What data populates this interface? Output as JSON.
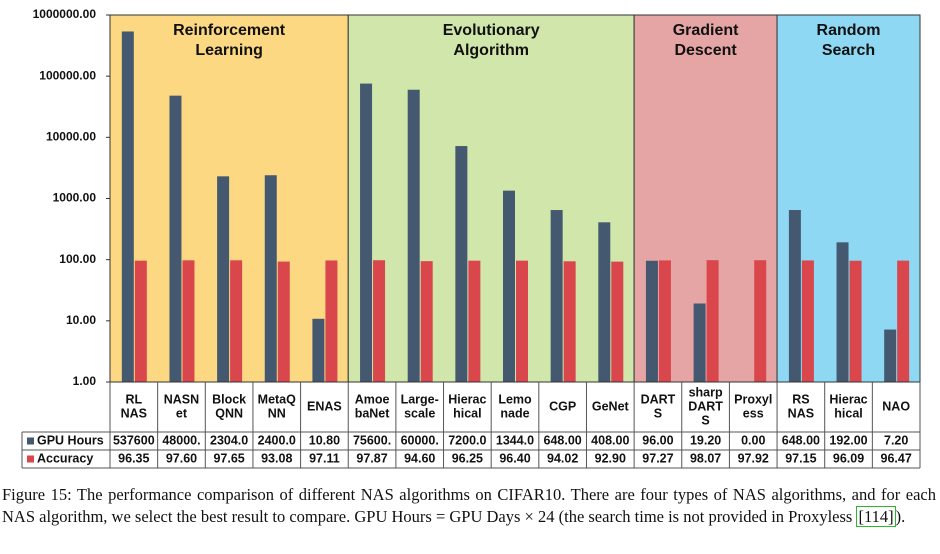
{
  "chart_data": {
    "type": "bar",
    "log_scale": true,
    "categories": [
      [
        "RL",
        "NAS"
      ],
      [
        "NASN",
        "et"
      ],
      [
        "Block",
        "QNN"
      ],
      [
        "MetaQ",
        "NN"
      ],
      [
        "ENAS"
      ],
      [
        "Amoe",
        "baNet"
      ],
      [
        "Large-",
        "scale"
      ],
      [
        "Hierac",
        "hical"
      ],
      [
        "Lemo",
        "nade"
      ],
      [
        "CGP"
      ],
      [
        "GeNet"
      ],
      [
        "DART",
        "S"
      ],
      [
        "sharp",
        "DART",
        "S"
      ],
      [
        "Proxyl",
        "ess"
      ],
      [
        "RS",
        "NAS"
      ],
      [
        "Hierac",
        "hical"
      ],
      [
        "NAO"
      ]
    ],
    "series": [
      {
        "name": "GPU Hours",
        "color": "#44596f",
        "values": [
          537600,
          48000,
          2304,
          2400,
          10.8,
          75600,
          60000,
          7200,
          1344,
          648,
          408,
          96,
          19.2,
          0,
          648,
          192,
          7.2
        ],
        "value_labels": [
          "537600",
          "48000.",
          "2304.0",
          "2400.0",
          "10.80",
          "75600.",
          "60000.",
          "7200.0",
          "1344.0",
          "648.00",
          "408.00",
          "96.00",
          "19.20",
          "0.00",
          "648.00",
          "192.00",
          "7.20"
        ]
      },
      {
        "name": "Accuracy",
        "color": "#d9464b",
        "values": [
          96.35,
          97.6,
          97.65,
          93.08,
          97.11,
          97.87,
          94.6,
          96.25,
          96.4,
          94.02,
          92.9,
          97.27,
          98.07,
          97.92,
          97.15,
          96.09,
          96.47
        ],
        "value_labels": [
          "96.35",
          "97.60",
          "97.65",
          "93.08",
          "97.11",
          "97.87",
          "94.60",
          "96.25",
          "96.40",
          "94.02",
          "92.90",
          "97.27",
          "98.07",
          "97.92",
          "97.15",
          "96.09",
          "96.47"
        ]
      }
    ],
    "groups": [
      {
        "name": [
          "Reinforcement",
          "Learning"
        ],
        "color": "#fdd883",
        "span": [
          0,
          4
        ]
      },
      {
        "name": [
          "Evolutionary",
          "Algorithm"
        ],
        "color": "#d0e6aa",
        "span": [
          5,
          10
        ]
      },
      {
        "name": [
          "Gradient",
          "Descent"
        ],
        "color": "#e6a5a5",
        "span": [
          11,
          13
        ]
      },
      {
        "name": [
          "Random",
          "Search"
        ],
        "color": "#8fd8f4",
        "span": [
          14,
          16
        ]
      }
    ],
    "ylim": [
      1,
      1000000
    ],
    "yticks": [
      {
        "value": 1,
        "label": "1.00"
      },
      {
        "value": 10,
        "label": "10.00"
      },
      {
        "value": 100,
        "label": "100.00"
      },
      {
        "value": 1000,
        "label": "1000.00"
      },
      {
        "value": 10000,
        "label": "10000.00"
      },
      {
        "value": 100000,
        "label": "100000.00"
      },
      {
        "value": 1000000,
        "label": "1000000.00"
      }
    ]
  },
  "caption": {
    "before": "Figure 15: The performance comparison of different NAS algorithms on CIFAR10. There are four types of NAS algorithms, and for each NAS algorithm, we select the best result to compare. GPU Hours = GPU Days × 24 (the search time is not provided in Proxyless ",
    "link": "[114]",
    "after": ")."
  }
}
